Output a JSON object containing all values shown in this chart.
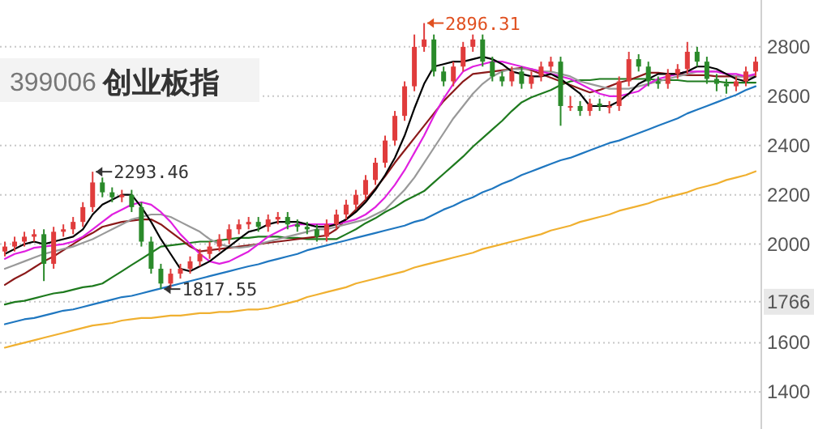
{
  "chart_data": {
    "type": "candlestick",
    "title": "创业板指",
    "subtitle": "399006",
    "categories": [
      null,
      null,
      null,
      null,
      null,
      null,
      null,
      null,
      null,
      null,
      null,
      null,
      null,
      null,
      null,
      null,
      null,
      null,
      null,
      null,
      null,
      null,
      null,
      null,
      null,
      null,
      null,
      null,
      null,
      null,
      null,
      null,
      null,
      null,
      null,
      null,
      null,
      null,
      null,
      null,
      null,
      null,
      null,
      null,
      null,
      null,
      null,
      null,
      null,
      null,
      null,
      null,
      null,
      null,
      null,
      null,
      null,
      null,
      null,
      null,
      null,
      null,
      null,
      null,
      null,
      null,
      null,
      null,
      null,
      null,
      null,
      null,
      null,
      null,
      null,
      null,
      null,
      null
    ],
    "ohlc": [
      [
        1970,
        2010,
        1950,
        1990
      ],
      [
        1990,
        2030,
        1970,
        2010
      ],
      [
        2010,
        2050,
        1990,
        2030
      ],
      [
        2030,
        2060,
        2010,
        2040
      ],
      [
        2040,
        2060,
        1850,
        1920
      ],
      [
        1920,
        2070,
        1900,
        2050
      ],
      [
        2050,
        2080,
        2030,
        2060
      ],
      [
        2060,
        2110,
        2040,
        2090
      ],
      [
        2090,
        2170,
        2070,
        2150
      ],
      [
        2150,
        2293.46,
        2130,
        2250
      ],
      [
        2250,
        2270,
        2190,
        2210
      ],
      [
        2210,
        2230,
        2170,
        2190
      ],
      [
        2190,
        2220,
        2170,
        2200
      ],
      [
        2200,
        2220,
        2130,
        2150
      ],
      [
        2150,
        2170,
        1990,
        2010
      ],
      [
        2010,
        2030,
        1880,
        1900
      ],
      [
        1900,
        1920,
        1817.55,
        1840
      ],
      [
        1840,
        1900,
        1820,
        1880
      ],
      [
        1880,
        1920,
        1860,
        1900
      ],
      [
        1900,
        1950,
        1880,
        1930
      ],
      [
        1930,
        1980,
        1910,
        1960
      ],
      [
        1960,
        2010,
        1940,
        1990
      ],
      [
        1990,
        2040,
        1970,
        2020
      ],
      [
        2020,
        2080,
        2000,
        2060
      ],
      [
        2060,
        2100,
        2040,
        2080
      ],
      [
        2080,
        2110,
        2060,
        2090
      ],
      [
        2090,
        2110,
        2050,
        2070
      ],
      [
        2070,
        2120,
        2050,
        2100
      ],
      [
        2100,
        2130,
        2080,
        2110
      ],
      [
        2110,
        2130,
        2060,
        2080
      ],
      [
        2080,
        2100,
        2050,
        2070
      ],
      [
        2070,
        2090,
        2040,
        2060
      ],
      [
        2060,
        2080,
        2010,
        2030
      ],
      [
        2030,
        2100,
        2010,
        2080
      ],
      [
        2080,
        2140,
        2060,
        2120
      ],
      [
        2120,
        2180,
        2100,
        2160
      ],
      [
        2160,
        2220,
        2140,
        2200
      ],
      [
        2200,
        2280,
        2180,
        2260
      ],
      [
        2260,
        2350,
        2240,
        2330
      ],
      [
        2330,
        2440,
        2310,
        2420
      ],
      [
        2420,
        2540,
        2400,
        2520
      ],
      [
        2520,
        2660,
        2500,
        2640
      ],
      [
        2640,
        2850,
        2620,
        2800
      ],
      [
        2800,
        2896.31,
        2780,
        2830
      ],
      [
        2830,
        2850,
        2680,
        2700
      ],
      [
        2700,
        2720,
        2640,
        2660
      ],
      [
        2660,
        2740,
        2640,
        2720
      ],
      [
        2720,
        2820,
        2700,
        2800
      ],
      [
        2800,
        2850,
        2780,
        2830
      ],
      [
        2830,
        2850,
        2720,
        2740
      ],
      [
        2740,
        2760,
        2660,
        2680
      ],
      [
        2680,
        2700,
        2640,
        2660
      ],
      [
        2660,
        2720,
        2640,
        2700
      ],
      [
        2700,
        2720,
        2630,
        2650
      ],
      [
        2650,
        2700,
        2630,
        2680
      ],
      [
        2680,
        2740,
        2660,
        2720
      ],
      [
        2720,
        2760,
        2700,
        2740
      ],
      [
        2740,
        2760,
        2480,
        2560
      ],
      [
        2560,
        2600,
        2540,
        2560
      ],
      [
        2560,
        2580,
        2520,
        2540
      ],
      [
        2540,
        2590,
        2520,
        2570
      ],
      [
        2570,
        2590,
        2540,
        2560
      ],
      [
        2560,
        2580,
        2530,
        2560
      ],
      [
        2560,
        2680,
        2540,
        2660
      ],
      [
        2660,
        2780,
        2640,
        2750
      ],
      [
        2750,
        2770,
        2700,
        2720
      ],
      [
        2720,
        2740,
        2640,
        2660
      ],
      [
        2660,
        2680,
        2630,
        2650
      ],
      [
        2650,
        2710,
        2630,
        2690
      ],
      [
        2690,
        2730,
        2670,
        2710
      ],
      [
        2710,
        2820,
        2690,
        2780
      ],
      [
        2780,
        2800,
        2720,
        2740
      ],
      [
        2740,
        2760,
        2650,
        2670
      ],
      [
        2670,
        2690,
        2620,
        2650
      ],
      [
        2650,
        2670,
        2610,
        2640
      ],
      [
        2640,
        2680,
        2620,
        2660
      ],
      [
        2660,
        2720,
        2640,
        2700
      ],
      [
        2700,
        2760,
        2680,
        2740
      ]
    ],
    "colors": [
      "#e03c3c",
      "#e03c3c",
      "#e03c3c",
      "#e03c3c",
      "#2a8a2a",
      "#e03c3c",
      "#e03c3c",
      "#e03c3c",
      "#e03c3c",
      "#e03c3c",
      "#2a8a2a",
      "#2a8a2a",
      "#e03c3c",
      "#2a8a2a",
      "#2a8a2a",
      "#2a8a2a",
      "#2a8a2a",
      "#e03c3c",
      "#e03c3c",
      "#e03c3c",
      "#e03c3c",
      "#e03c3c",
      "#e03c3c",
      "#e03c3c",
      "#e03c3c",
      "#e03c3c",
      "#2a8a2a",
      "#e03c3c",
      "#e03c3c",
      "#2a8a2a",
      "#2a8a2a",
      "#2a8a2a",
      "#2a8a2a",
      "#e03c3c",
      "#e03c3c",
      "#e03c3c",
      "#e03c3c",
      "#e03c3c",
      "#e03c3c",
      "#e03c3c",
      "#e03c3c",
      "#e03c3c",
      "#e03c3c",
      "#e03c3c",
      "#2a8a2a",
      "#2a8a2a",
      "#e03c3c",
      "#e03c3c",
      "#e03c3c",
      "#2a8a2a",
      "#2a8a2a",
      "#2a8a2a",
      "#e03c3c",
      "#2a8a2a",
      "#e03c3c",
      "#e03c3c",
      "#e03c3c",
      "#2a8a2a",
      "#e03c3c",
      "#2a8a2a",
      "#e03c3c",
      "#2a8a2a",
      "#e03c3c",
      "#e03c3c",
      "#e03c3c",
      "#2a8a2a",
      "#2a8a2a",
      "#2a8a2a",
      "#e03c3c",
      "#e03c3c",
      "#e03c3c",
      "#2a8a2a",
      "#2a8a2a",
      "#2a8a2a",
      "#2a8a2a",
      "#e03c3c",
      "#e03c3c",
      "#e03c3c"
    ],
    "series": [
      {
        "type": "line",
        "color": "#f0b030",
        "values": [
          1580,
          1590,
          1600,
          1610,
          1620,
          1630,
          1640,
          1650,
          1660,
          1670,
          1675,
          1680,
          1690,
          1695,
          1700,
          1700,
          1705,
          1710,
          1710,
          1715,
          1720,
          1720,
          1725,
          1725,
          1730,
          1735,
          1735,
          1740,
          1750,
          1760,
          1770,
          1785,
          1795,
          1805,
          1815,
          1825,
          1840,
          1850,
          1860,
          1870,
          1880,
          1890,
          1905,
          1915,
          1925,
          1935,
          1945,
          1955,
          1965,
          1980,
          1990,
          2000,
          2010,
          2020,
          2030,
          2040,
          2055,
          2065,
          2075,
          2090,
          2100,
          2110,
          2120,
          2135,
          2145,
          2155,
          2165,
          2180,
          2190,
          2200,
          2210,
          2225,
          2235,
          2245,
          2260,
          2270,
          2280,
          2295
        ]
      },
      {
        "type": "line",
        "color": "#1f77c0",
        "values": [
          1675,
          1685,
          1695,
          1700,
          1710,
          1720,
          1730,
          1735,
          1745,
          1755,
          1765,
          1775,
          1785,
          1790,
          1800,
          1810,
          1820,
          1830,
          1840,
          1850,
          1860,
          1870,
          1880,
          1890,
          1900,
          1910,
          1918,
          1930,
          1940,
          1950,
          1960,
          1975,
          1985,
          1995,
          2005,
          2015,
          2025,
          2035,
          2045,
          2055,
          2065,
          2075,
          2090,
          2100,
          2120,
          2140,
          2155,
          2175,
          2190,
          2210,
          2225,
          2245,
          2260,
          2280,
          2295,
          2310,
          2325,
          2340,
          2350,
          2365,
          2380,
          2395,
          2410,
          2420,
          2435,
          2450,
          2465,
          2480,
          2495,
          2510,
          2530,
          2545,
          2560,
          2575,
          2590,
          2605,
          2625,
          2640
        ]
      },
      {
        "type": "line",
        "color": "#1e7a1e",
        "values": [
          1755,
          1765,
          1770,
          1780,
          1790,
          1800,
          1805,
          1815,
          1825,
          1830,
          1840,
          1865,
          1890,
          1915,
          1940,
          1965,
          1990,
          1995,
          2000,
          2005,
          2010,
          2010,
          2015,
          2020,
          2025,
          2025,
          2030,
          2030,
          2030,
          2025,
          2025,
          2020,
          2020,
          2020,
          2020,
          2040,
          2060,
          2085,
          2105,
          2130,
          2150,
          2175,
          2195,
          2215,
          2250,
          2285,
          2320,
          2355,
          2395,
          2430,
          2465,
          2500,
          2540,
          2575,
          2595,
          2610,
          2625,
          2645,
          2660,
          2665,
          2665,
          2670,
          2670,
          2670,
          2670,
          2670,
          2670,
          2665,
          2665,
          2665,
          2660,
          2660,
          2660,
          2660,
          2655,
          2655,
          2655,
          2655
        ]
      },
      {
        "type": "line",
        "color": "#8b1a1a",
        "values": [
          1835,
          1860,
          1880,
          1905,
          1930,
          1950,
          1975,
          2000,
          2025,
          2045,
          2070,
          2080,
          2090,
          2095,
          2100,
          2100,
          2080,
          2050,
          2020,
          1990,
          1970,
          1975,
          1980,
          1985,
          1990,
          1995,
          2000,
          2005,
          2010,
          2015,
          2020,
          2025,
          2030,
          2035,
          2060,
          2100,
          2140,
          2180,
          2225,
          2275,
          2330,
          2380,
          2430,
          2480,
          2530,
          2580,
          2620,
          2660,
          2690,
          2695,
          2700,
          2705,
          2710,
          2715,
          2705,
          2690,
          2675,
          2660,
          2645,
          2630,
          2615,
          2625,
          2640,
          2655,
          2665,
          2680,
          2695,
          2695,
          2690,
          2690,
          2685,
          2685,
          2685,
          2680,
          2680,
          2680,
          2680,
          2680
        ]
      },
      {
        "type": "line",
        "color": "#999999",
        "values": [
          1900,
          1915,
          1930,
          1945,
          1960,
          1970,
          1980,
          1990,
          2005,
          2020,
          2040,
          2060,
          2080,
          2100,
          2110,
          2120,
          2120,
          2110,
          2090,
          2070,
          2050,
          2020,
          2000,
          1990,
          1985,
          1990,
          2000,
          2010,
          2020,
          2030,
          2040,
          2050,
          2060,
          2060,
          2070,
          2080,
          2090,
          2100,
          2120,
          2140,
          2180,
          2220,
          2270,
          2330,
          2390,
          2450,
          2510,
          2560,
          2610,
          2650,
          2680,
          2700,
          2710,
          2710,
          2710,
          2700,
          2700,
          2690,
          2680,
          2660,
          2650,
          2640,
          2630,
          2630,
          2630,
          2640,
          2650,
          2660,
          2670,
          2680,
          2690,
          2700,
          2700,
          2700,
          2690,
          2680,
          2680,
          2680
        ]
      },
      {
        "type": "line",
        "color": "#e020e0",
        "values": [
          1940,
          1960,
          1970,
          1985,
          1990,
          1995,
          2000,
          2010,
          2030,
          2060,
          2090,
          2120,
          2140,
          2160,
          2170,
          2160,
          2130,
          2090,
          2040,
          2000,
          1960,
          1930,
          1920,
          1930,
          1950,
          1970,
          2000,
          2030,
          2050,
          2070,
          2080,
          2080,
          2080,
          2080,
          2080,
          2090,
          2100,
          2120,
          2150,
          2190,
          2240,
          2300,
          2370,
          2440,
          2520,
          2590,
          2650,
          2700,
          2720,
          2730,
          2740,
          2740,
          2730,
          2720,
          2710,
          2700,
          2690,
          2680,
          2670,
          2650,
          2630,
          2610,
          2600,
          2600,
          2610,
          2620,
          2650,
          2670,
          2680,
          2690,
          2700,
          2700,
          2700,
          2700,
          2690,
          2690,
          2680,
          2690
        ]
      },
      {
        "type": "line",
        "color": "#000000",
        "values": [
          1960,
          1980,
          2000,
          2010,
          2000,
          2010,
          2020,
          2030,
          2060,
          2120,
          2160,
          2180,
          2200,
          2200,
          2150,
          2090,
          2020,
          1960,
          1900,
          1890,
          1910,
          1930,
          1960,
          1990,
          2020,
          2050,
          2060,
          2080,
          2090,
          2090,
          2090,
          2080,
          2070,
          2070,
          2080,
          2100,
          2130,
          2170,
          2220,
          2280,
          2350,
          2440,
          2550,
          2650,
          2720,
          2730,
          2740,
          2740,
          2750,
          2760,
          2750,
          2730,
          2700,
          2690,
          2680,
          2680,
          2690,
          2670,
          2640,
          2610,
          2560,
          2560,
          2560,
          2580,
          2610,
          2650,
          2670,
          2690,
          2690,
          2690,
          2700,
          2720,
          2720,
          2710,
          2690,
          2670,
          2660,
          2680
        ]
      }
    ],
    "annotations": [
      "2293.46",
      "1817.55",
      "2896.31"
    ],
    "ylim": [
      1250,
      2990
    ],
    "yticks": [
      1400,
      1600,
      1766,
      2000,
      2200,
      2400,
      2600,
      2800
    ],
    "grid": "y",
    "tick_labels": "y"
  }
}
